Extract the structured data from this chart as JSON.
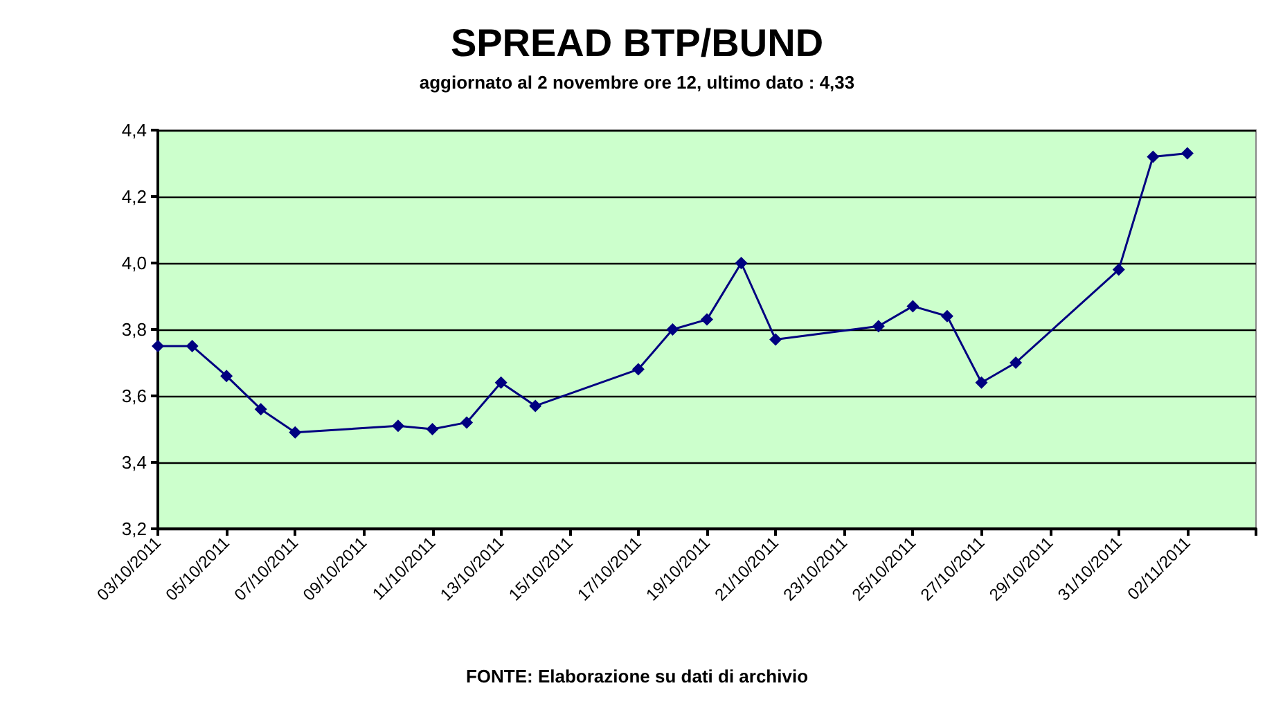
{
  "chart_data": {
    "type": "line",
    "title": "SPREAD BTP/BUND",
    "subtitle": "aggiornato al 2 novembre ore 12, ultimo dato : 4,33",
    "annotations": [
      "FONTE: Elaborazione su dati di archivio"
    ],
    "x": [
      "2011-10-03",
      "2011-10-04",
      "2011-10-05",
      "2011-10-06",
      "2011-10-07",
      "2011-10-10",
      "2011-10-11",
      "2011-10-12",
      "2011-10-13",
      "2011-10-14",
      "2011-10-17",
      "2011-10-18",
      "2011-10-19",
      "2011-10-20",
      "2011-10-21",
      "2011-10-24",
      "2011-10-25",
      "2011-10-26",
      "2011-10-27",
      "2011-10-28",
      "2011-10-31",
      "2011-11-01",
      "2011-11-02"
    ],
    "series": [
      {
        "color": "#000080",
        "values": [
          3.75,
          3.75,
          3.66,
          3.56,
          3.49,
          3.51,
          3.5,
          3.52,
          3.64,
          3.57,
          3.68,
          3.8,
          3.83,
          4.0,
          3.77,
          3.81,
          3.87,
          3.84,
          3.64,
          3.7,
          3.98,
          4.32,
          4.33
        ]
      }
    ],
    "xlim": [
      "2011-10-03",
      "2011-11-04"
    ],
    "xticks": [
      {
        "value": "2011-10-03",
        "label": "03/10/2011"
      },
      {
        "value": "2011-10-05",
        "label": "05/10/2011"
      },
      {
        "value": "2011-10-07",
        "label": "07/10/2011"
      },
      {
        "value": "2011-10-09",
        "label": "09/10/2011"
      },
      {
        "value": "2011-10-11",
        "label": "11/10/2011"
      },
      {
        "value": "2011-10-13",
        "label": "13/10/2011"
      },
      {
        "value": "2011-10-15",
        "label": "15/10/2011"
      },
      {
        "value": "2011-10-17",
        "label": "17/10/2011"
      },
      {
        "value": "2011-10-19",
        "label": "19/10/2011"
      },
      {
        "value": "2011-10-21",
        "label": "21/10/2011"
      },
      {
        "value": "2011-10-23",
        "label": "23/10/2011"
      },
      {
        "value": "2011-10-25",
        "label": "25/10/2011"
      },
      {
        "value": "2011-10-27",
        "label": "27/10/2011"
      },
      {
        "value": "2011-10-29",
        "label": "29/10/2011"
      },
      {
        "value": "2011-10-31",
        "label": "31/10/2011"
      },
      {
        "value": "2011-11-02",
        "label": "02/11/2011"
      },
      {
        "value": "2011-11-04",
        "label": null
      }
    ],
    "ylim": [
      3.2,
      4.4
    ],
    "yticks": [
      {
        "value": 3.2,
        "label": "3,2"
      },
      {
        "value": 3.4,
        "label": "3,4"
      },
      {
        "value": 3.6,
        "label": "3,6"
      },
      {
        "value": 3.8,
        "label": "3,8"
      },
      {
        "value": 4.0,
        "label": "4,0"
      },
      {
        "value": 4.2,
        "label": "4,2"
      },
      {
        "value": 4.4,
        "label": "4,4"
      }
    ],
    "grid": "y",
    "marker": "diamond",
    "line_style": "solid"
  }
}
